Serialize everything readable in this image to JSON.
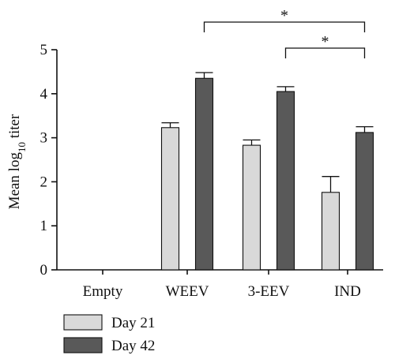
{
  "chart_data": {
    "type": "bar",
    "ylabel": "Mean log",
    "ylabel_sub": "10",
    "ylabel_suffix": " titer",
    "xlabel": "",
    "ylim": [
      0,
      5
    ],
    "yticks": [
      "0",
      "1",
      "2",
      "3",
      "4",
      "5"
    ],
    "categories": [
      "Empty",
      "WEEV",
      "3-EEV",
      "IND"
    ],
    "series": [
      {
        "name": "Day 21",
        "color": "#d9d9d9",
        "values": [
          0,
          3.23,
          2.83,
          1.76
        ],
        "errors": [
          0,
          0.11,
          0.12,
          0.36
        ]
      },
      {
        "name": "Day 42",
        "color": "#595959",
        "values": [
          0,
          4.35,
          4.05,
          3.12
        ],
        "errors": [
          0,
          0.13,
          0.11,
          0.13
        ]
      }
    ],
    "legend": [
      "Day 21",
      "Day 42"
    ],
    "legend_position": "bottom-left",
    "significance": [
      {
        "from": "WEEV",
        "to": "IND",
        "label": "*"
      },
      {
        "from": "3-EEV",
        "to": "IND",
        "label": "*"
      }
    ]
  }
}
